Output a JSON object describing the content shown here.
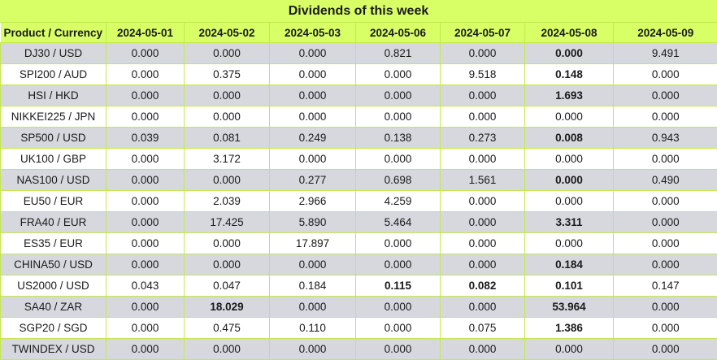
{
  "title": "Dividends of this week",
  "headers": [
    "Product / Currency",
    "2024-05-01",
    "2024-05-02",
    "2024-05-03",
    "2024-05-06",
    "2024-05-07",
    "2024-05-08",
    "2024-05-09"
  ],
  "rows": [
    {
      "product": "DJ30 / USD",
      "values": [
        "0.000",
        "0.000",
        "0.000",
        "0.821",
        "0.000",
        "0.000",
        "9.491"
      ],
      "bold": [
        5
      ]
    },
    {
      "product": "SPI200 / AUD",
      "values": [
        "0.000",
        "0.375",
        "0.000",
        "0.000",
        "9.518",
        "0.148",
        "0.000"
      ],
      "bold": [
        5
      ]
    },
    {
      "product": "HSI / HKD",
      "values": [
        "0.000",
        "0.000",
        "0.000",
        "0.000",
        "0.000",
        "1.693",
        "0.000"
      ],
      "bold": [
        5
      ]
    },
    {
      "product": "NIKKEI225 / JPN",
      "values": [
        "0.000",
        "0.000",
        "0.000",
        "0.000",
        "0.000",
        "0.000",
        "0.000"
      ],
      "bold": []
    },
    {
      "product": "SP500 / USD",
      "values": [
        "0.039",
        "0.081",
        "0.249",
        "0.138",
        "0.273",
        "0.008",
        "0.943"
      ],
      "bold": [
        5
      ]
    },
    {
      "product": "UK100 / GBP",
      "values": [
        "0.000",
        "3.172",
        "0.000",
        "0.000",
        "0.000",
        "0.000",
        "0.000"
      ],
      "bold": []
    },
    {
      "product": "NAS100 / USD",
      "values": [
        "0.000",
        "0.000",
        "0.277",
        "0.698",
        "1.561",
        "0.000",
        "0.490"
      ],
      "bold": [
        5
      ]
    },
    {
      "product": "EU50 / EUR",
      "values": [
        "0.000",
        "2.039",
        "2.966",
        "4.259",
        "0.000",
        "0.000",
        "0.000"
      ],
      "bold": []
    },
    {
      "product": "FRA40 / EUR",
      "values": [
        "0.000",
        "17.425",
        "5.890",
        "5.464",
        "0.000",
        "3.311",
        "0.000"
      ],
      "bold": [
        5
      ]
    },
    {
      "product": "ES35 / EUR",
      "values": [
        "0.000",
        "0.000",
        "17.897",
        "0.000",
        "0.000",
        "0.000",
        "0.000"
      ],
      "bold": []
    },
    {
      "product": "CHINA50 / USD",
      "values": [
        "0.000",
        "0.000",
        "0.000",
        "0.000",
        "0.000",
        "0.184",
        "0.000"
      ],
      "bold": [
        5
      ]
    },
    {
      "product": "US2000 / USD",
      "values": [
        "0.043",
        "0.047",
        "0.184",
        "0.115",
        "0.082",
        "0.101",
        "0.147"
      ],
      "bold": [
        3,
        4,
        5
      ]
    },
    {
      "product": "SA40 / ZAR",
      "values": [
        "0.000",
        "18.029",
        "0.000",
        "0.000",
        "0.000",
        "53.964",
        "0.000"
      ],
      "bold": [
        1,
        5
      ]
    },
    {
      "product": "SGP20 / SGD",
      "values": [
        "0.000",
        "0.475",
        "0.110",
        "0.000",
        "0.075",
        "1.386",
        "0.000"
      ],
      "bold": [
        5
      ]
    },
    {
      "product": "TWINDEX / USD",
      "values": [
        "0.000",
        "0.000",
        "0.000",
        "0.000",
        "0.000",
        "0.000",
        "0.000"
      ],
      "bold": []
    }
  ]
}
